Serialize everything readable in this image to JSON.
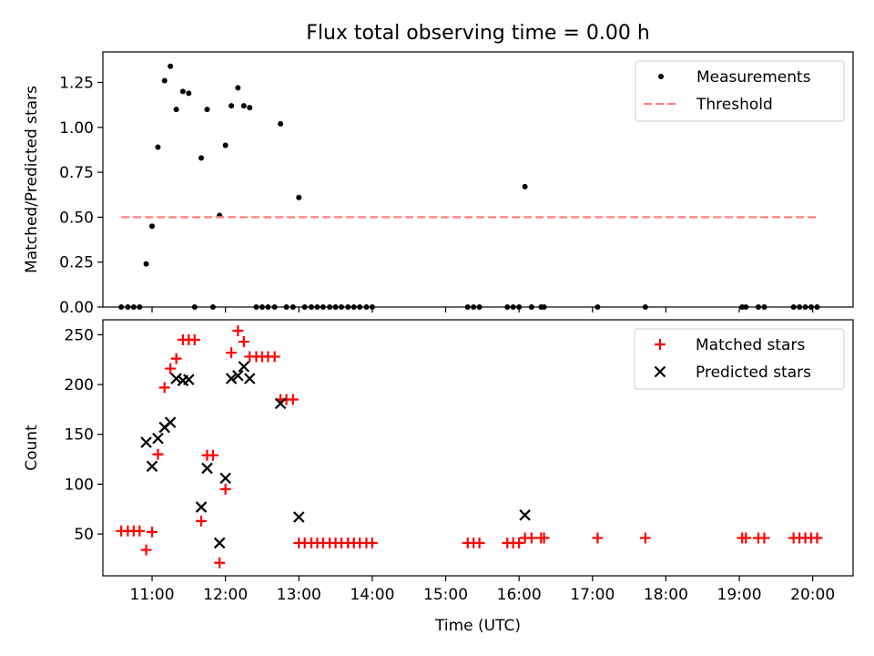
{
  "figure": {
    "title": "Flux total observing time = 0.00 h",
    "background": "#ffffff"
  },
  "chart_data": [
    {
      "type": "scatter",
      "ylabel": "Matched/Predicted stars",
      "xlim": [
        10.33,
        20.55
      ],
      "ylim": [
        0,
        1.42
      ],
      "yticks": [
        0.0,
        0.25,
        0.5,
        0.75,
        1.0,
        1.25
      ],
      "ytick_labels": [
        "0.00",
        "0.25",
        "0.50",
        "0.75",
        "1.00",
        "1.25"
      ],
      "legend_position": "upper right",
      "grid": false,
      "series": [
        {
          "name": "Measurements",
          "marker": "dot",
          "color": "#000000",
          "points": [
            [
              10.58,
              0
            ],
            [
              10.67,
              0
            ],
            [
              10.75,
              0
            ],
            [
              10.83,
              0
            ],
            [
              10.92,
              0.24
            ],
            [
              11.0,
              0.45
            ],
            [
              11.08,
              0.89
            ],
            [
              11.17,
              1.26
            ],
            [
              11.25,
              1.34
            ],
            [
              11.33,
              1.1
            ],
            [
              11.42,
              1.2
            ],
            [
              11.5,
              1.19
            ],
            [
              11.58,
              0
            ],
            [
              11.67,
              0.83
            ],
            [
              11.75,
              1.1
            ],
            [
              11.83,
              0
            ],
            [
              11.92,
              0.51
            ],
            [
              12.0,
              0.9
            ],
            [
              12.08,
              1.12
            ],
            [
              12.17,
              1.22
            ],
            [
              12.25,
              1.12
            ],
            [
              12.33,
              1.11
            ],
            [
              12.42,
              0
            ],
            [
              12.5,
              0
            ],
            [
              12.58,
              0
            ],
            [
              12.67,
              0
            ],
            [
              12.75,
              1.02
            ],
            [
              12.83,
              0
            ],
            [
              12.92,
              0
            ],
            [
              13.0,
              0.61
            ],
            [
              13.08,
              0
            ],
            [
              13.17,
              0
            ],
            [
              13.25,
              0
            ],
            [
              13.33,
              0
            ],
            [
              13.42,
              0
            ],
            [
              13.5,
              0
            ],
            [
              13.58,
              0
            ],
            [
              13.67,
              0
            ],
            [
              13.75,
              0
            ],
            [
              13.83,
              0
            ],
            [
              13.92,
              0
            ],
            [
              14.0,
              0
            ],
            [
              15.3,
              0
            ],
            [
              15.38,
              0
            ],
            [
              15.46,
              0
            ],
            [
              15.84,
              0
            ],
            [
              15.92,
              0
            ],
            [
              16.0,
              0
            ],
            [
              16.08,
              0.67
            ],
            [
              16.17,
              0
            ],
            [
              16.3,
              0
            ],
            [
              16.34,
              0
            ],
            [
              17.07,
              0
            ],
            [
              17.72,
              0
            ],
            [
              19.04,
              0
            ],
            [
              19.09,
              0
            ],
            [
              19.26,
              0
            ],
            [
              19.34,
              0
            ],
            [
              19.74,
              0
            ],
            [
              19.82,
              0
            ],
            [
              19.9,
              0
            ],
            [
              19.98,
              0
            ],
            [
              20.06,
              0
            ]
          ]
        },
        {
          "name": "Threshold",
          "style": "dashed",
          "color": "#ff7f7f",
          "x": [
            10.58,
            20.06
          ],
          "y": [
            0.5,
            0.5
          ]
        }
      ]
    },
    {
      "type": "scatter",
      "ylabel": "Count",
      "xlabel": "Time (UTC)",
      "xlim": [
        10.33,
        20.55
      ],
      "ylim": [
        8,
        265
      ],
      "yticks": [
        50,
        100,
        150,
        200,
        250
      ],
      "ytick_labels": [
        "50",
        "100",
        "150",
        "200",
        "250"
      ],
      "xticks": [
        11,
        12,
        13,
        14,
        15,
        16,
        17,
        18,
        19,
        20
      ],
      "xtick_labels": [
        "11:00",
        "12:00",
        "13:00",
        "14:00",
        "15:00",
        "16:00",
        "17:00",
        "18:00",
        "19:00",
        "20:00"
      ],
      "legend_position": "upper right",
      "grid": false,
      "series": [
        {
          "name": "Matched stars",
          "marker": "plus",
          "color": "#ff0000",
          "points": [
            [
              10.58,
              53
            ],
            [
              10.67,
              53
            ],
            [
              10.75,
              53
            ],
            [
              10.83,
              53
            ],
            [
              10.92,
              34
            ],
            [
              11.0,
              52
            ],
            [
              11.08,
              130
            ],
            [
              11.17,
              197
            ],
            [
              11.25,
              216
            ],
            [
              11.33,
              226
            ],
            [
              11.42,
              245
            ],
            [
              11.5,
              245
            ],
            [
              11.58,
              245
            ],
            [
              11.67,
              63
            ],
            [
              11.75,
              129
            ],
            [
              11.83,
              129
            ],
            [
              11.92,
              21
            ],
            [
              12.0,
              95
            ],
            [
              12.08,
              232
            ],
            [
              12.17,
              254
            ],
            [
              12.25,
              243
            ],
            [
              12.33,
              228
            ],
            [
              12.42,
              228
            ],
            [
              12.5,
              228
            ],
            [
              12.58,
              228
            ],
            [
              12.67,
              228
            ],
            [
              12.75,
              185
            ],
            [
              12.83,
              185
            ],
            [
              12.92,
              185
            ],
            [
              13.0,
              41
            ],
            [
              13.08,
              41
            ],
            [
              13.17,
              41
            ],
            [
              13.25,
              41
            ],
            [
              13.33,
              41
            ],
            [
              13.42,
              41
            ],
            [
              13.5,
              41
            ],
            [
              13.58,
              41
            ],
            [
              13.67,
              41
            ],
            [
              13.75,
              41
            ],
            [
              13.83,
              41
            ],
            [
              13.92,
              41
            ],
            [
              14.0,
              41
            ],
            [
              15.3,
              41
            ],
            [
              15.38,
              41
            ],
            [
              15.46,
              41
            ],
            [
              15.84,
              41
            ],
            [
              15.92,
              41
            ],
            [
              16.0,
              41
            ],
            [
              16.08,
              46
            ],
            [
              16.17,
              46
            ],
            [
              16.3,
              46
            ],
            [
              16.34,
              46
            ],
            [
              17.07,
              46
            ],
            [
              17.72,
              46
            ],
            [
              19.04,
              46
            ],
            [
              19.09,
              46
            ],
            [
              19.26,
              46
            ],
            [
              19.34,
              46
            ],
            [
              19.74,
              46
            ],
            [
              19.82,
              46
            ],
            [
              19.9,
              46
            ],
            [
              19.98,
              46
            ],
            [
              20.06,
              46
            ]
          ]
        },
        {
          "name": "Predicted stars",
          "marker": "x",
          "color": "#000000",
          "points": [
            [
              10.92,
              142
            ],
            [
              11.0,
              118
            ],
            [
              11.08,
              146
            ],
            [
              11.17,
              157
            ],
            [
              11.25,
              162
            ],
            [
              11.33,
              206
            ],
            [
              11.42,
              204
            ],
            [
              11.5,
              205
            ],
            [
              11.67,
              77
            ],
            [
              11.75,
              116
            ],
            [
              11.92,
              41
            ],
            [
              12.0,
              106
            ],
            [
              12.08,
              206
            ],
            [
              12.17,
              209
            ],
            [
              12.25,
              218
            ],
            [
              12.33,
              206
            ],
            [
              12.75,
              181
            ],
            [
              13.0,
              67
            ],
            [
              16.08,
              69
            ]
          ]
        }
      ]
    }
  ]
}
